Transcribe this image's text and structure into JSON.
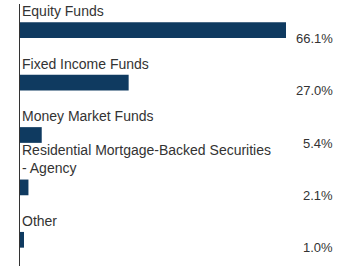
{
  "chart_data": {
    "type": "bar",
    "orientation": "horizontal",
    "categories": [
      "Equity Funds",
      "Fixed Income Funds",
      "Money Market Funds",
      "Residential Mortgage-Backed Securities - Agency",
      "Other"
    ],
    "values": [
      66.1,
      27.0,
      5.4,
      2.1,
      1.0
    ],
    "value_labels": [
      "66.1%",
      "27.0%",
      "5.4%",
      "2.1%",
      "1.0%"
    ],
    "data_labels": true,
    "color": "#0f3a60",
    "tick_labels": false,
    "grid": false
  }
}
